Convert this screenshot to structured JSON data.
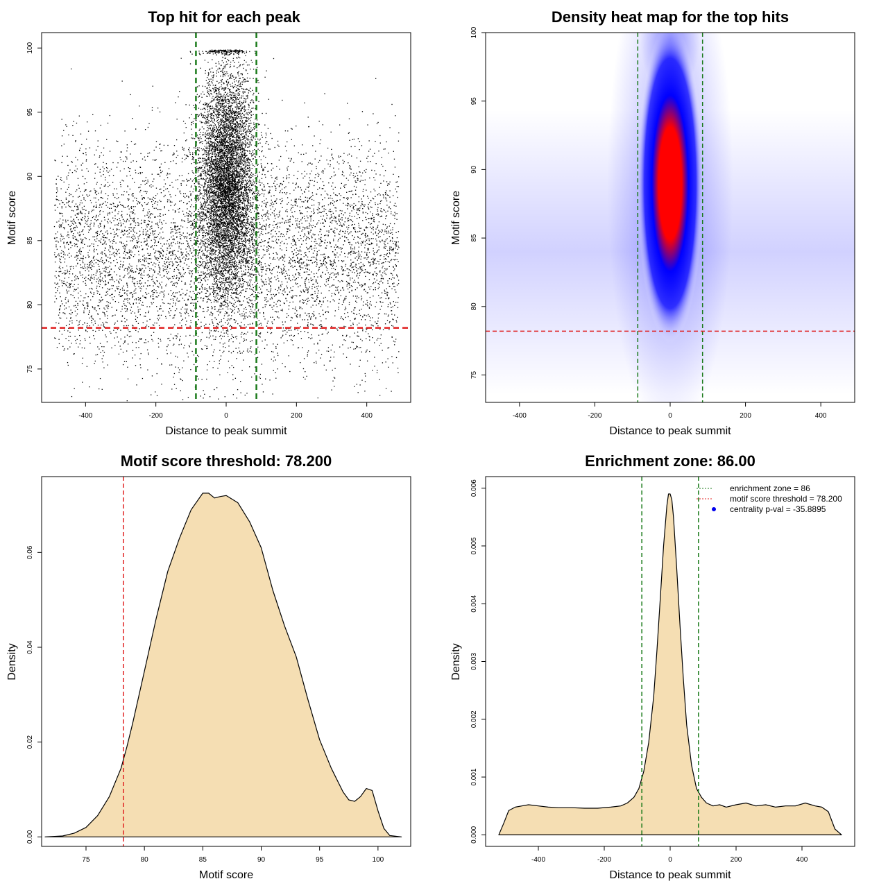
{
  "chart_data": [
    {
      "type": "scatter",
      "title": "Top hit for each peak",
      "xlabel": "Distance to peak summit",
      "ylabel": "Motif score",
      "xlim": [
        -525,
        525
      ],
      "ylim": [
        72.4,
        101.2
      ],
      "xticks": [
        -400,
        -200,
        0,
        200,
        400
      ],
      "yticks": [
        75,
        80,
        85,
        90,
        95,
        100
      ],
      "vlines": [
        -86,
        86
      ],
      "hline": 78.2,
      "vline_color": "#1a7a1a",
      "hline_color": "#e02020",
      "point_color": "#000000",
      "distribution": {
        "n_background": 6500,
        "background_x_range": [
          -490,
          490
        ],
        "background_y_mean": 84,
        "background_y_sd": 4.2,
        "n_central": 7000,
        "central_x_sd": 40,
        "central_y_mean": 89.5,
        "central_y_sd": 4.5,
        "y_max": 99.8
      }
    },
    {
      "type": "heatmap",
      "title": "Density heat map for the top hits",
      "xlabel": "Distance to peak summit",
      "ylabel": "Motif score",
      "xlim": [
        -490,
        490
      ],
      "ylim": [
        73,
        100
      ],
      "xticks": [
        -400,
        -200,
        0,
        200,
        400
      ],
      "yticks": [
        75,
        80,
        85,
        90,
        95,
        100
      ],
      "vlines": [
        -86,
        86
      ],
      "hline": 78.2,
      "vline_color": "#1a7a1a",
      "hline_color": "#e02020",
      "color_scale": [
        "#ffffff",
        "#0000ff",
        "#ff0000"
      ],
      "hotspot": {
        "x": 0,
        "y": 89,
        "x_sd": 40,
        "y_sd": 4.5
      },
      "background_band": {
        "y": 84,
        "y_sd": 4
      }
    },
    {
      "type": "area",
      "title": "Motif score threshold: 78.200",
      "xlabel": "Motif score",
      "ylabel": "Density",
      "xlim": [
        71.2,
        102.8
      ],
      "ylim": [
        -0.002,
        0.076
      ],
      "xticks": [
        75,
        80,
        85,
        90,
        95,
        100
      ],
      "yticks": [
        0.0,
        0.02,
        0.04,
        0.06
      ],
      "ytick_labels": [
        "0.00",
        "0.02",
        "0.04",
        "0.06"
      ],
      "vlines": [
        78.2
      ],
      "vline_color": "#e02020",
      "fill_color": "#f5deb3",
      "x": [
        71.5,
        73,
        74,
        75,
        76,
        77,
        78,
        78.5,
        79,
        80,
        81,
        82,
        83,
        84,
        85,
        85.5,
        86,
        86.5,
        87,
        88,
        89,
        90,
        91,
        92,
        93,
        94,
        95,
        96,
        97,
        97.5,
        98,
        98.5,
        99,
        99.5,
        100,
        100.5,
        101,
        102
      ],
      "y": [
        0.0,
        0.0002,
        0.0008,
        0.002,
        0.0045,
        0.0085,
        0.0145,
        0.019,
        0.024,
        0.035,
        0.046,
        0.056,
        0.063,
        0.069,
        0.0725,
        0.0725,
        0.0715,
        0.0718,
        0.072,
        0.0705,
        0.0665,
        0.061,
        0.052,
        0.0445,
        0.038,
        0.029,
        0.0205,
        0.0145,
        0.0095,
        0.0078,
        0.0075,
        0.0085,
        0.0102,
        0.0098,
        0.0055,
        0.0018,
        0.0003,
        0.0
      ]
    },
    {
      "type": "area",
      "title": "Enrichment zone: 86.00",
      "xlabel": "Distance to peak summit",
      "ylabel": "Density",
      "xlim": [
        -560,
        560
      ],
      "ylim": [
        -0.0002,
        0.0062
      ],
      "xticks": [
        -400,
        -200,
        0,
        200,
        400
      ],
      "yticks": [
        0.0,
        0.001,
        0.002,
        0.003,
        0.004,
        0.005,
        0.006
      ],
      "ytick_labels": [
        "0.000",
        "0.001",
        "0.002",
        "0.003",
        "0.004",
        "0.005",
        "0.006"
      ],
      "vlines": [
        -86,
        86
      ],
      "vline_color": "#1a7a1a",
      "fill_color": "#f5deb3",
      "x": [
        -520,
        -505,
        -490,
        -470,
        -450,
        -430,
        -400,
        -370,
        -340,
        -300,
        -260,
        -220,
        -180,
        -150,
        -130,
        -110,
        -95,
        -80,
        -65,
        -50,
        -40,
        -30,
        -20,
        -10,
        -5,
        0,
        5,
        10,
        20,
        30,
        40,
        50,
        65,
        80,
        95,
        110,
        130,
        150,
        170,
        200,
        230,
        260,
        290,
        320,
        350,
        380,
        410,
        440,
        460,
        480,
        500,
        520
      ],
      "y": [
        0.0,
        0.0002,
        0.00042,
        0.00048,
        0.0005,
        0.00052,
        0.0005,
        0.00048,
        0.00047,
        0.00047,
        0.00046,
        0.00046,
        0.00048,
        0.0005,
        0.00055,
        0.00065,
        0.0008,
        0.0011,
        0.0016,
        0.0024,
        0.0032,
        0.0041,
        0.005,
        0.0057,
        0.0059,
        0.0059,
        0.0058,
        0.0055,
        0.0046,
        0.0036,
        0.0027,
        0.0019,
        0.0012,
        0.0008,
        0.00065,
        0.00055,
        0.0005,
        0.00052,
        0.00048,
        0.00052,
        0.00055,
        0.0005,
        0.00052,
        0.00048,
        0.0005,
        0.0005,
        0.00055,
        0.0005,
        0.00048,
        0.0004,
        0.0001,
        0.0
      ],
      "legend": {
        "placement": "top-right",
        "entries": [
          {
            "label": "enrichment zone = 86",
            "color": "#1a7a1a",
            "style": "dotted-line"
          },
          {
            "label": "motif score threshold = 78.200",
            "color": "#e02020",
            "style": "dotted-line"
          },
          {
            "label": "centrality p-val = -35.8895",
            "color": "#0000ee",
            "style": "point"
          }
        ]
      }
    }
  ]
}
